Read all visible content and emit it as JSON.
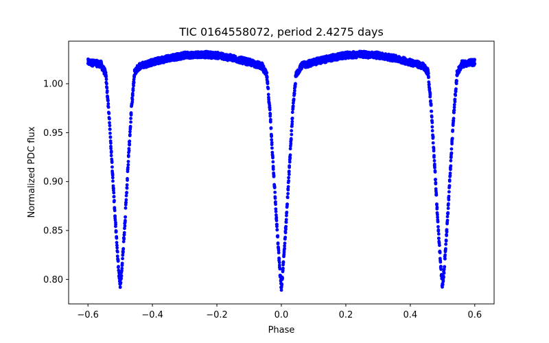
{
  "chart_data": {
    "type": "scatter",
    "title": "TIC 0164558072, period 2.4275 days",
    "xlabel": "Phase",
    "ylabel": "Normalized PDC flux",
    "xlim": [
      -0.66,
      0.66
    ],
    "ylim": [
      0.775,
      1.0435
    ],
    "xticks": [
      -0.6,
      -0.4,
      -0.2,
      0.0,
      0.2,
      0.4,
      0.6
    ],
    "xtick_labels": [
      "−0.6",
      "−0.4",
      "−0.2",
      "0.0",
      "0.2",
      "0.4",
      "0.6"
    ],
    "yticks": [
      0.8,
      0.85,
      0.9,
      0.95,
      1.0
    ],
    "ytick_labels": [
      "0.80",
      "0.85",
      "0.90",
      "0.95",
      "1.00"
    ],
    "grid": false,
    "legend": "none",
    "marker_color": "#0000ff",
    "series": [
      {
        "phase": [
          -0.6,
          -0.58,
          -0.56,
          -0.545,
          -0.535,
          -0.525,
          -0.515,
          -0.505,
          -0.5,
          -0.495,
          -0.485,
          -0.475,
          -0.465,
          -0.455,
          -0.44,
          -0.4,
          -0.35,
          -0.3,
          -0.25,
          -0.2,
          -0.15,
          -0.1,
          -0.06,
          -0.045,
          -0.035,
          -0.025,
          -0.015,
          -0.005,
          0.0,
          0.005,
          0.015,
          0.025,
          0.035,
          0.045,
          0.06,
          0.1,
          0.15,
          0.2,
          0.25,
          0.3,
          0.35,
          0.4,
          0.44,
          0.455,
          0.465,
          0.475,
          0.485,
          0.495,
          0.5,
          0.505,
          0.515,
          0.525,
          0.535,
          0.545,
          0.56,
          0.58,
          0.6
        ],
        "flux": [
          1.022,
          1.021,
          1.02,
          1.01,
          0.97,
          0.915,
          0.86,
          0.81,
          0.792,
          0.81,
          0.86,
          0.92,
          0.975,
          1.012,
          1.018,
          1.022,
          1.026,
          1.029,
          1.03,
          1.029,
          1.026,
          1.022,
          1.018,
          1.008,
          0.97,
          0.915,
          0.86,
          0.81,
          0.79,
          0.81,
          0.86,
          0.915,
          0.97,
          1.008,
          1.018,
          1.022,
          1.026,
          1.029,
          1.03,
          1.029,
          1.026,
          1.022,
          1.018,
          1.012,
          0.975,
          0.92,
          0.86,
          0.81,
          0.792,
          0.81,
          0.86,
          0.915,
          0.97,
          1.01,
          1.02,
          1.021,
          1.022
        ]
      }
    ]
  }
}
